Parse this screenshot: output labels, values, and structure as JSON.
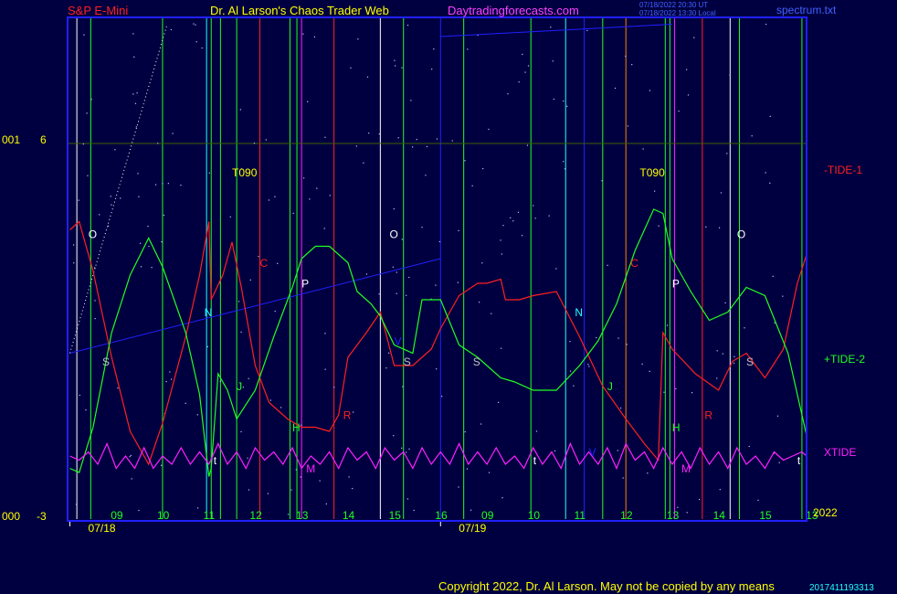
{
  "header": {
    "symbol": "S&P E-Mini",
    "source": "Dr. Al Larson's Chaos Trader Web",
    "site": "Daytradingforecasts.com",
    "time_ut": "07/18/2022 20:30 UT",
    "time_local": "07/18/2022 13:30 Local",
    "file": "spectrum.txt"
  },
  "copyright": "Copyright 2022, Dr. Al Larson. May not be copied by any means",
  "footer_time": "2017411193313",
  "colors": {
    "background": "#000040",
    "frame": "#2020ff",
    "tide1": "#ff2020",
    "tide2": "#20ff20",
    "xtide": "#ff20ff",
    "header_symbol": "#ff2020",
    "header_source": "#ffff00",
    "header_site": "#ff40ff"
  },
  "chart_data": {
    "type": "line",
    "y_left_labels": {
      "top": "6",
      "bottom": "-3"
    },
    "y_far_left_labels": {
      "top": "001",
      "bottom": "000"
    },
    "ylim": [
      -3,
      6
    ],
    "year_label": "2022",
    "dates": [
      {
        "label": "07/18",
        "hour": 8.0
      },
      {
        "label": "07/19",
        "hour": 16.0
      }
    ],
    "hour_ticks": [
      {
        "label": "09",
        "h": 9
      },
      {
        "label": "10",
        "h": 10
      },
      {
        "label": "11",
        "h": 11
      },
      {
        "label": "12",
        "h": 12
      },
      {
        "label": "13",
        "h": 13
      },
      {
        "label": "14",
        "h": 14
      },
      {
        "label": "15",
        "h": 15
      },
      {
        "label": "16",
        "h": 16
      },
      {
        "label": "09",
        "h": 17
      },
      {
        "label": "10",
        "h": 18
      },
      {
        "label": "11",
        "h": 19
      },
      {
        "label": "12",
        "h": 20
      },
      {
        "label": "13",
        "h": 21
      },
      {
        "label": "14",
        "h": 22
      },
      {
        "label": "15",
        "h": 23
      },
      {
        "label": "13",
        "h": 24
      }
    ],
    "xlim": [
      7.97,
      23.9
    ],
    "series": [
      {
        "name": "-TIDE-1",
        "color": "#ff2020",
        "points": [
          [
            8.0,
            3.9
          ],
          [
            8.2,
            4.1
          ],
          [
            8.5,
            2.9
          ],
          [
            8.9,
            0.8
          ],
          [
            9.3,
            -1.0
          ],
          [
            9.7,
            -1.8
          ],
          [
            10.0,
            -0.8
          ],
          [
            10.5,
            1.3
          ],
          [
            10.8,
            2.8
          ],
          [
            11.0,
            4.1
          ],
          [
            11.05,
            2.2
          ],
          [
            11.3,
            2.8
          ],
          [
            11.5,
            3.6
          ],
          [
            11.7,
            2.5
          ],
          [
            12.0,
            0.6
          ],
          [
            12.3,
            -0.3
          ],
          [
            12.7,
            -0.7
          ],
          [
            13.0,
            -0.9
          ],
          [
            13.3,
            -0.9
          ],
          [
            13.6,
            -1.0
          ],
          [
            13.8,
            -0.6
          ],
          [
            14.0,
            0.8
          ],
          [
            14.4,
            1.4
          ],
          [
            14.7,
            1.9
          ],
          [
            15.0,
            0.6
          ],
          [
            15.4,
            0.6
          ],
          [
            15.8,
            1.0
          ],
          [
            16.0,
            1.5
          ],
          [
            16.4,
            2.3
          ],
          [
            16.8,
            2.6
          ],
          [
            17.0,
            2.6
          ],
          [
            17.3,
            2.7
          ],
          [
            17.4,
            2.2
          ],
          [
            17.7,
            2.2
          ],
          [
            18.0,
            2.3
          ],
          [
            18.5,
            2.4
          ],
          [
            19.0,
            1.3
          ],
          [
            19.5,
            0.1
          ],
          [
            20.0,
            -0.7
          ],
          [
            20.4,
            -1.3
          ],
          [
            20.7,
            -1.7
          ],
          [
            20.8,
            1.4
          ],
          [
            21.0,
            1.0
          ],
          [
            21.5,
            0.4
          ],
          [
            22.0,
            0.0
          ],
          [
            22.3,
            0.7
          ],
          [
            22.6,
            0.9
          ],
          [
            23.0,
            0.3
          ],
          [
            23.4,
            1.0
          ],
          [
            23.7,
            2.6
          ],
          [
            23.9,
            3.3
          ]
        ]
      },
      {
        "name": "+TIDE-2",
        "color": "#20ff20",
        "points": [
          [
            8.0,
            -1.9
          ],
          [
            8.2,
            -2.0
          ],
          [
            8.5,
            -0.9
          ],
          [
            8.9,
            1.4
          ],
          [
            9.3,
            2.8
          ],
          [
            9.7,
            3.7
          ],
          [
            10.0,
            3.0
          ],
          [
            10.5,
            1.4
          ],
          [
            10.8,
            -0.1
          ],
          [
            11.0,
            -2.1
          ],
          [
            11.05,
            -1.9
          ],
          [
            11.2,
            0.4
          ],
          [
            11.4,
            0.0
          ],
          [
            11.6,
            -0.7
          ],
          [
            12.0,
            0.0
          ],
          [
            12.4,
            1.3
          ],
          [
            12.8,
            2.5
          ],
          [
            13.0,
            3.2
          ],
          [
            13.3,
            3.5
          ],
          [
            13.6,
            3.5
          ],
          [
            14.0,
            3.1
          ],
          [
            14.2,
            2.4
          ],
          [
            14.5,
            2.1
          ],
          [
            14.7,
            1.8
          ],
          [
            15.0,
            1.1
          ],
          [
            15.4,
            0.9
          ],
          [
            15.6,
            2.2
          ],
          [
            16.0,
            2.2
          ],
          [
            16.4,
            1.1
          ],
          [
            16.8,
            0.8
          ],
          [
            17.0,
            0.6
          ],
          [
            17.3,
            0.3
          ],
          [
            17.6,
            0.2
          ],
          [
            18.0,
            0.0
          ],
          [
            18.5,
            0.0
          ],
          [
            19.0,
            0.6
          ],
          [
            19.4,
            1.2
          ],
          [
            19.8,
            2.1
          ],
          [
            20.2,
            3.4
          ],
          [
            20.6,
            4.4
          ],
          [
            20.8,
            4.3
          ],
          [
            21.0,
            3.2
          ],
          [
            21.4,
            2.4
          ],
          [
            21.8,
            1.7
          ],
          [
            22.2,
            1.9
          ],
          [
            22.6,
            2.5
          ],
          [
            23.0,
            2.3
          ],
          [
            23.5,
            0.9
          ],
          [
            23.9,
            -1.1
          ]
        ]
      },
      {
        "name": "XTIDE",
        "color": "#ff20ff",
        "points": [
          [
            8.0,
            -1.6
          ],
          [
            8.2,
            -1.7
          ],
          [
            8.4,
            -1.5
          ],
          [
            8.6,
            -1.8
          ],
          [
            8.8,
            -1.3
          ],
          [
            9.0,
            -1.9
          ],
          [
            9.2,
            -1.6
          ],
          [
            9.4,
            -1.9
          ],
          [
            9.6,
            -1.4
          ],
          [
            9.8,
            -1.9
          ],
          [
            10.0,
            -1.6
          ],
          [
            10.2,
            -1.8
          ],
          [
            10.4,
            -1.4
          ],
          [
            10.6,
            -1.8
          ],
          [
            10.8,
            -1.5
          ],
          [
            11.0,
            -1.8
          ],
          [
            11.2,
            -1.3
          ],
          [
            11.4,
            -1.8
          ],
          [
            11.6,
            -1.5
          ],
          [
            11.8,
            -1.9
          ],
          [
            12.0,
            -1.4
          ],
          [
            12.2,
            -1.7
          ],
          [
            12.4,
            -1.5
          ],
          [
            12.6,
            -1.8
          ],
          [
            12.8,
            -1.4
          ],
          [
            13.0,
            -1.9
          ],
          [
            13.2,
            -1.6
          ],
          [
            13.4,
            -1.8
          ],
          [
            13.6,
            -1.5
          ],
          [
            13.8,
            -1.9
          ],
          [
            14.0,
            -1.4
          ],
          [
            14.2,
            -1.7
          ],
          [
            14.4,
            -1.5
          ],
          [
            14.6,
            -1.9
          ],
          [
            14.8,
            -1.4
          ],
          [
            15.0,
            -1.7
          ],
          [
            15.2,
            -1.5
          ],
          [
            15.4,
            -1.9
          ],
          [
            15.6,
            -1.4
          ],
          [
            15.8,
            -1.8
          ],
          [
            16.0,
            -1.5
          ],
          [
            16.2,
            -1.8
          ],
          [
            16.4,
            -1.3
          ],
          [
            16.6,
            -1.8
          ],
          [
            16.8,
            -1.5
          ],
          [
            17.0,
            -1.8
          ],
          [
            17.2,
            -1.4
          ],
          [
            17.4,
            -1.8
          ],
          [
            17.6,
            -1.6
          ],
          [
            17.8,
            -1.9
          ],
          [
            18.0,
            -1.4
          ],
          [
            18.2,
            -1.8
          ],
          [
            18.4,
            -1.5
          ],
          [
            18.6,
            -1.9
          ],
          [
            18.8,
            -1.3
          ],
          [
            19.0,
            -1.8
          ],
          [
            19.2,
            -1.5
          ],
          [
            19.4,
            -1.8
          ],
          [
            19.6,
            -1.4
          ],
          [
            19.8,
            -1.9
          ],
          [
            20.0,
            -1.3
          ],
          [
            20.2,
            -1.7
          ],
          [
            20.4,
            -1.5
          ],
          [
            20.6,
            -1.9
          ],
          [
            20.8,
            -1.4
          ],
          [
            21.0,
            -1.8
          ],
          [
            21.2,
            -1.5
          ],
          [
            21.4,
            -1.9
          ],
          [
            21.6,
            -1.4
          ],
          [
            21.8,
            -1.8
          ],
          [
            22.0,
            -1.5
          ],
          [
            22.2,
            -1.9
          ],
          [
            22.4,
            -1.4
          ],
          [
            22.6,
            -1.8
          ],
          [
            22.8,
            -1.6
          ],
          [
            23.0,
            -1.9
          ],
          [
            23.2,
            -1.5
          ],
          [
            23.4,
            -1.7
          ],
          [
            23.6,
            -1.6
          ],
          [
            23.8,
            -1.5
          ],
          [
            23.9,
            -1.6
          ]
        ]
      }
    ],
    "series_labels": [
      {
        "text": "-TIDE-1",
        "color": "#ff2020",
        "y": 3.7
      },
      {
        "text": "+TIDE-2",
        "color": "#20ff20",
        "y": -1.4
      },
      {
        "text": "XTIDE",
        "color": "#ff20ff",
        "y": -1.4
      }
    ],
    "vertical_lines": [
      {
        "h": 8.15,
        "color": "#ffffff"
      },
      {
        "h": 8.45,
        "color": "#20ff20"
      },
      {
        "h": 10.0,
        "color": "#20ff20"
      },
      {
        "h": 10.95,
        "color": "#20ffff"
      },
      {
        "h": 11.05,
        "color": "#20ff20"
      },
      {
        "h": 11.25,
        "color": "#20ff20"
      },
      {
        "h": 11.6,
        "color": "#20ff20"
      },
      {
        "h": 12.1,
        "color": "#ff2020"
      },
      {
        "h": 12.75,
        "color": "#20ff20"
      },
      {
        "h": 12.9,
        "color": "#20ff20"
      },
      {
        "h": 13.0,
        "color": "#ff20ff"
      },
      {
        "h": 13.7,
        "color": "#ff2020"
      },
      {
        "h": 14.7,
        "color": "#ffffff"
      },
      {
        "h": 15.2,
        "color": "#20ff20"
      },
      {
        "h": 16.0,
        "color": "#2020ff"
      },
      {
        "h": 16.5,
        "color": "#20ff20"
      },
      {
        "h": 17.95,
        "color": "#20ff20"
      },
      {
        "h": 18.7,
        "color": "#20ffff"
      },
      {
        "h": 19.1,
        "color": "#2020ff"
      },
      {
        "h": 19.5,
        "color": "#20ff20"
      },
      {
        "h": 20.0,
        "color": "#ff8000"
      },
      {
        "h": 20.85,
        "color": "#20ff20"
      },
      {
        "h": 20.95,
        "color": "#20ff20"
      },
      {
        "h": 21.05,
        "color": "#ff20ff"
      },
      {
        "h": 21.65,
        "color": "#ff2020"
      },
      {
        "h": 22.25,
        "color": "#ffffff"
      },
      {
        "h": 22.45,
        "color": "#20ff20"
      },
      {
        "h": 23.8,
        "color": "#20ff20"
      }
    ],
    "markers": [
      {
        "text": "T090",
        "color": "#ffff00",
        "h": 11.5,
        "y": 5.2
      },
      {
        "text": "T090",
        "color": "#ffff00",
        "h": 20.3,
        "y": 5.2
      },
      {
        "text": "O",
        "color": "#ffffff",
        "h": 8.4,
        "y": 3.7
      },
      {
        "text": "O",
        "color": "#ffffff",
        "h": 14.9,
        "y": 3.7
      },
      {
        "text": "O",
        "color": "#ffffff",
        "h": 22.4,
        "y": 3.7
      },
      {
        "text": "C",
        "color": "#ff2020",
        "h": 12.1,
        "y": 3.0
      },
      {
        "text": "C",
        "color": "#ff2020",
        "h": 20.1,
        "y": 3.0
      },
      {
        "text": "P",
        "color": "#ffffff",
        "h": 13.0,
        "y": 2.5
      },
      {
        "text": "P",
        "color": "#ffffff",
        "h": 21.0,
        "y": 2.5
      },
      {
        "text": "N",
        "color": "#20ffff",
        "h": 10.9,
        "y": 1.8
      },
      {
        "text": "N",
        "color": "#20ffff",
        "h": 18.9,
        "y": 1.8
      },
      {
        "text": "S",
        "color": "#c0c0c0",
        "h": 8.7,
        "y": 0.6
      },
      {
        "text": "S",
        "color": "#c0c0c0",
        "h": 15.2,
        "y": 0.6
      },
      {
        "text": "S",
        "color": "#c0c0c0",
        "h": 16.7,
        "y": 0.6
      },
      {
        "text": "S",
        "color": "#c0c0c0",
        "h": 22.6,
        "y": 0.6
      },
      {
        "text": "J",
        "color": "#20ff20",
        "h": 11.6,
        "y": 0.0
      },
      {
        "text": "J",
        "color": "#20ff20",
        "h": 19.6,
        "y": 0.0
      },
      {
        "text": "V",
        "color": "#2020ff",
        "h": 15.0,
        "y": 1.1
      },
      {
        "text": "V",
        "color": "#2020ff",
        "h": 19.2,
        "y": -1.6
      },
      {
        "text": "R",
        "color": "#ff2020",
        "h": 13.9,
        "y": -0.7
      },
      {
        "text": "R",
        "color": "#ff2020",
        "h": 21.7,
        "y": -0.7
      },
      {
        "text": "H",
        "color": "#20ff20",
        "h": 12.8,
        "y": -1.0
      },
      {
        "text": "H",
        "color": "#20ff20",
        "h": 21.0,
        "y": -1.0
      },
      {
        "text": "M",
        "color": "#ff20ff",
        "h": 13.1,
        "y": -2.0
      },
      {
        "text": "M",
        "color": "#ff20ff",
        "h": 21.2,
        "y": -2.0
      },
      {
        "text": "t",
        "color": "#ffffff",
        "h": 11.1,
        "y": -1.8
      },
      {
        "text": "t",
        "color": "#ffffff",
        "h": 18.0,
        "y": -1.8
      },
      {
        "text": "t",
        "color": "#ffffff",
        "h": 23.7,
        "y": -1.8
      }
    ]
  }
}
